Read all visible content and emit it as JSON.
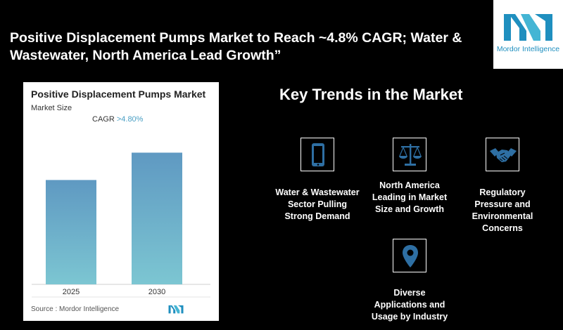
{
  "headline": "Positive Displacement Pumps Market to Reach ~4.8% CAGR; Water & Wastewater, North America Lead Growth”",
  "logo": {
    "text": "Mordor Intelligence",
    "color": "#1f8fbf",
    "accent": "#44b5d4"
  },
  "chart_card": {
    "title": "Positive Displacement Pumps Market",
    "subtitle": "Market Size",
    "cagr_label": "CAGR",
    "cagr_value": ">4.80%",
    "source": "Source :  Mordor Intelligence"
  },
  "chart_data": {
    "type": "bar",
    "categories": [
      "2025",
      "2030"
    ],
    "values": [
      0.725,
      0.915
    ],
    "bar_color_top": "#5f99c2",
    "bar_color_bottom": "#7cc6d2",
    "ylim": [
      0,
      1
    ]
  },
  "trends": {
    "title": "Key Trends in the Market",
    "items": [
      {
        "label": "Water & Wastewater Sector Pulling Strong Demand",
        "icon": "mobile-icon"
      },
      {
        "label": "North America Leading in Market Size and Growth",
        "icon": "scales-icon"
      },
      {
        "label": "Regulatory Pressure and Environmental Concerns",
        "icon": "handshake-icon"
      },
      {
        "label": "Diverse Applications and Usage by Industry",
        "icon": "location-pin-icon"
      }
    ],
    "icon_color": "#2e6fa3"
  }
}
